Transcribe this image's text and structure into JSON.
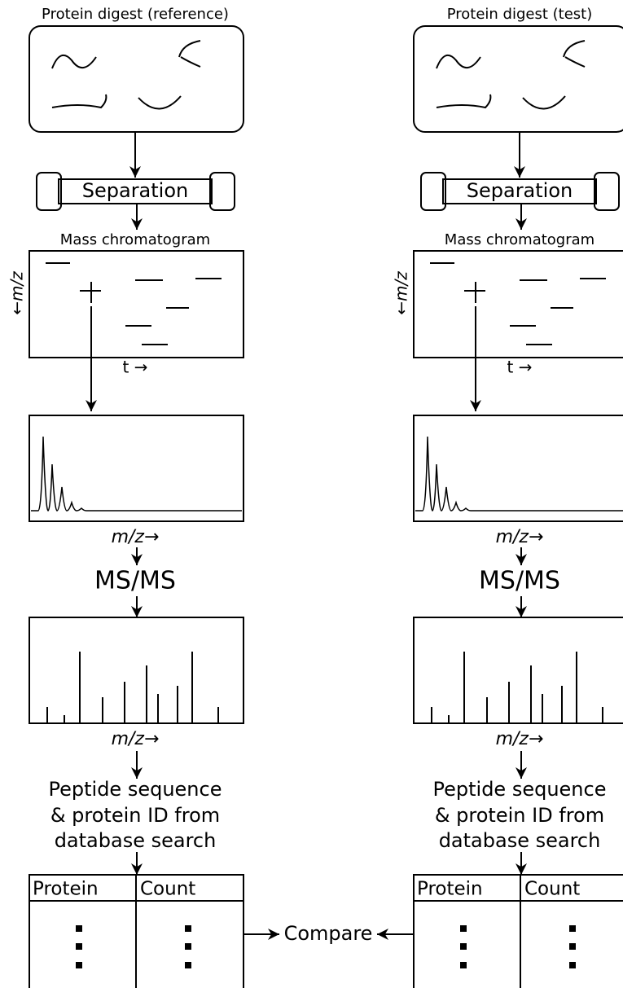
{
  "columns": [
    {
      "title": "Protein digest (reference)",
      "separation": "Separation",
      "chromatogram_title": "Mass chromatogram",
      "y_axis": "←m/z",
      "x_axis": "t →",
      "spectrum_axis": "m/z→",
      "msms": "MS/MS",
      "msms_axis": "m/z→",
      "search": [
        "Peptide sequence",
        "& protein ID from",
        "database search"
      ],
      "table_headers": [
        "Protein",
        "Count"
      ]
    },
    {
      "title": "Protein digest (test)",
      "separation": "Separation",
      "chromatogram_title": "Mass chromatogram",
      "y_axis": "←m/z",
      "x_axis": "t →",
      "spectrum_axis": "m/z→",
      "msms": "MS/MS",
      "msms_axis": "m/z→",
      "search": [
        "Peptide sequence",
        "& protein ID from",
        "database search"
      ],
      "table_headers": [
        "Protein",
        "Count"
      ]
    }
  ],
  "compare": "Compare"
}
